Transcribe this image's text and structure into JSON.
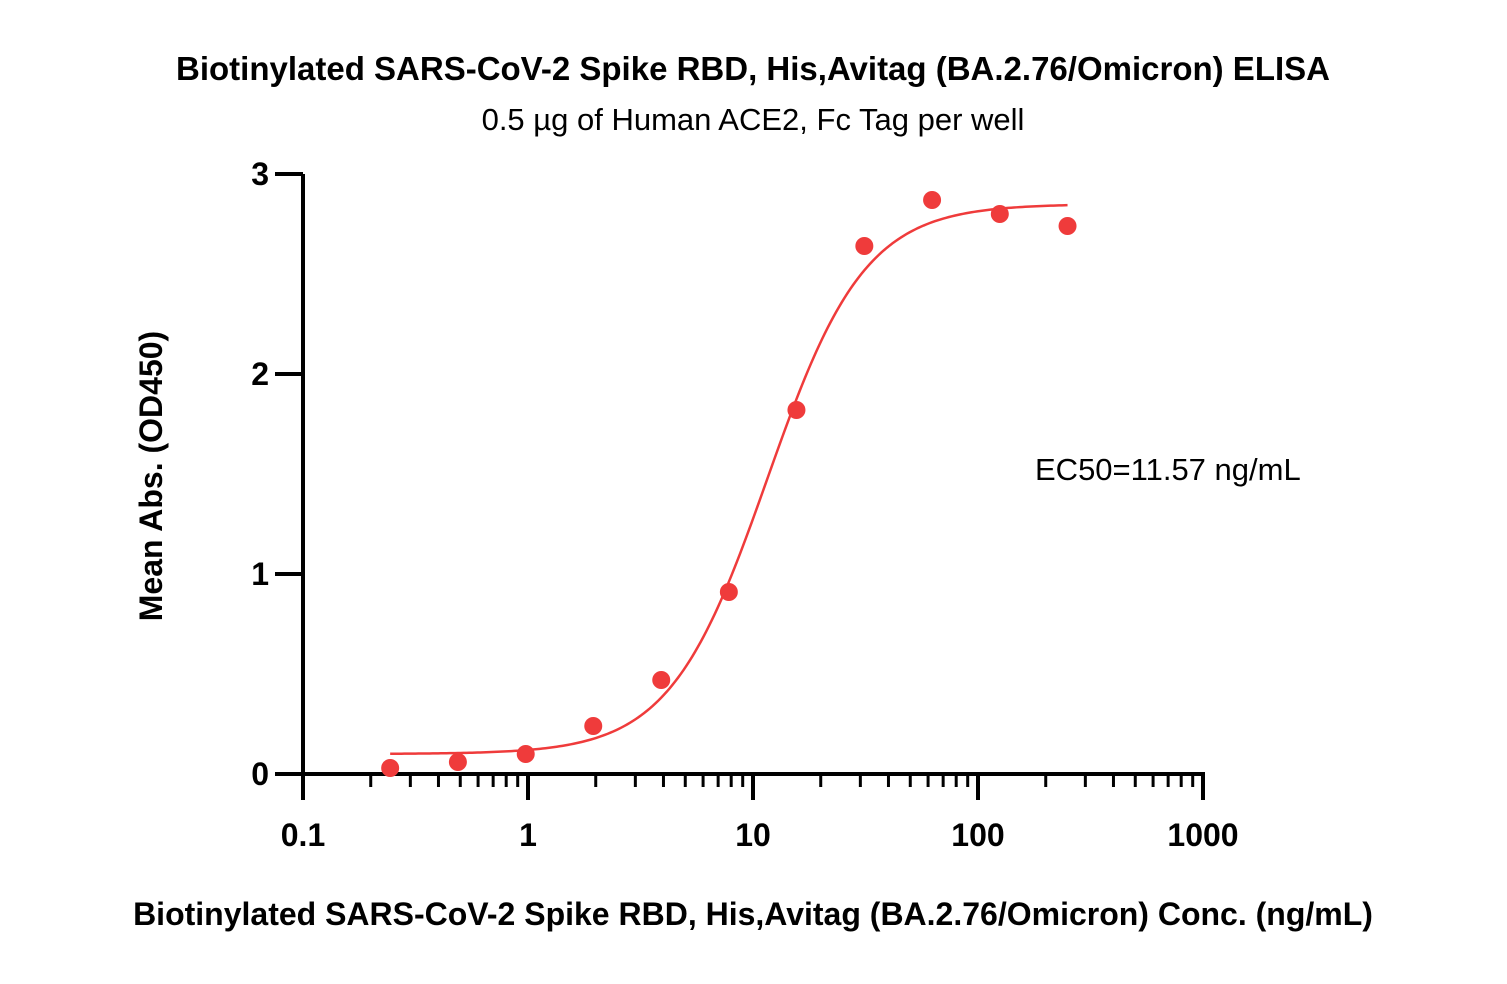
{
  "chart_data": {
    "type": "scatter",
    "title": "Biotinylated SARS-CoV-2 Spike RBD, His,Avitag (BA.2.76/Omicron) ELISA",
    "subtitle": "0.5 µg of Human ACE2, Fc Tag per well",
    "xlabel": "Biotinylated SARS-CoV-2 Spike RBD, His,Avitag (BA.2.76/Omicron) Conc. (ng/mL)",
    "ylabel": "Mean Abs. (OD450)",
    "x_scale": "log",
    "xlim": [
      0.1,
      1000
    ],
    "ylim": [
      0,
      3
    ],
    "x_ticks": [
      0.1,
      1,
      10,
      100,
      1000
    ],
    "x_tick_labels": [
      "0.1",
      "1",
      "10",
      "100",
      "1000"
    ],
    "y_ticks": [
      0,
      1,
      2,
      3
    ],
    "y_tick_labels": [
      "0",
      "1",
      "2",
      "3"
    ],
    "grid": false,
    "color": "#ef3b3b",
    "points": {
      "x": [
        0.244,
        0.488,
        0.977,
        1.95,
        3.91,
        7.81,
        15.6,
        31.25,
        62.5,
        125,
        250
      ],
      "y": [
        0.03,
        0.06,
        0.1,
        0.24,
        0.47,
        0.91,
        1.82,
        2.64,
        2.87,
        2.8,
        2.74
      ]
    },
    "fit": {
      "model": "4PL",
      "bottom": 0.1,
      "top": 2.85,
      "ec50": 11.57,
      "hill": 2.0,
      "x_range": [
        0.244,
        250
      ]
    },
    "annotation": "EC50=11.57 ng/mL"
  }
}
